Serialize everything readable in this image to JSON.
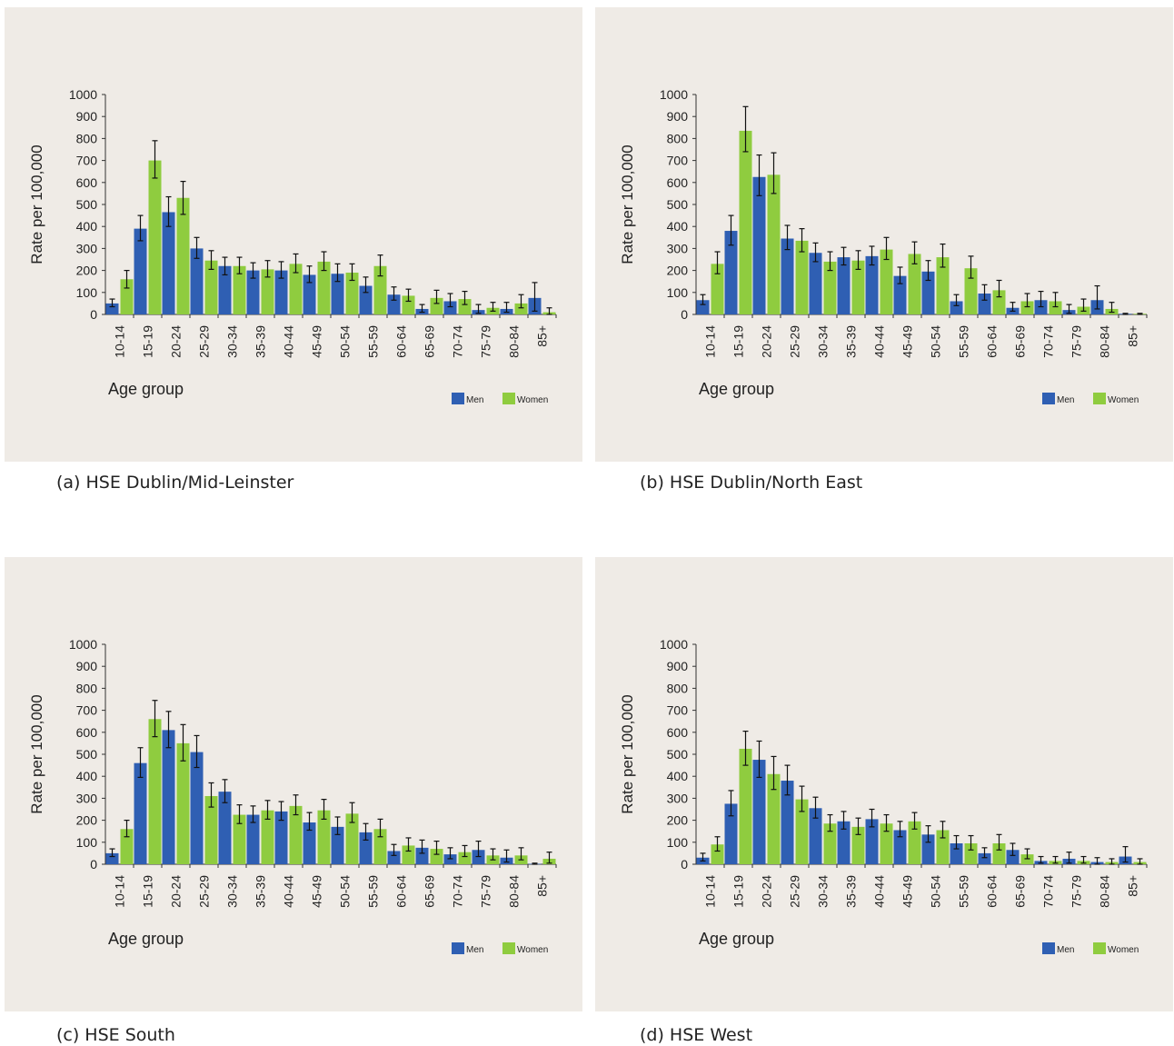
{
  "colors": {
    "men": "#2f5fb3",
    "women": "#8fcc3f",
    "panel_bg": "#efebe6",
    "axis": "#333333"
  },
  "chart_data": [
    {
      "type": "bar",
      "caption": "(a) HSE Dublin/Mid-Leinster",
      "ylabel": "Rate per 100,000",
      "xlabel": "Age group",
      "ylim": [
        0,
        1000
      ],
      "yticks": [
        "0",
        "100",
        "200",
        "300",
        "400",
        "500",
        "600",
        "700",
        "800",
        "900",
        "1000"
      ],
      "categories": [
        "10-14",
        "15-19",
        "20-24",
        "25-29",
        "30-34",
        "35-39",
        "40-44",
        "45-49",
        "50-54",
        "55-59",
        "60-64",
        "65-69",
        "70-74",
        "75-79",
        "80-84",
        "85+"
      ],
      "legend": {
        "placement": "bottom-right"
      },
      "series": [
        {
          "name": "Men",
          "values": [
            50,
            390,
            465,
            300,
            220,
            200,
            200,
            180,
            185,
            130,
            90,
            25,
            60,
            20,
            25,
            75
          ],
          "lower": [
            35,
            335,
            400,
            255,
            180,
            165,
            165,
            145,
            150,
            100,
            65,
            10,
            35,
            5,
            10,
            15
          ],
          "upper": [
            70,
            450,
            535,
            350,
            260,
            235,
            240,
            220,
            230,
            170,
            125,
            45,
            95,
            45,
            55,
            145
          ]
        },
        {
          "name": "Women",
          "values": [
            160,
            700,
            530,
            245,
            220,
            205,
            230,
            240,
            190,
            220,
            85,
            75,
            70,
            30,
            50,
            10
          ],
          "lower": [
            120,
            620,
            455,
            205,
            185,
            170,
            190,
            200,
            155,
            175,
            60,
            50,
            45,
            15,
            30,
            0
          ],
          "upper": [
            200,
            790,
            605,
            290,
            260,
            245,
            275,
            285,
            230,
            270,
            115,
            110,
            105,
            55,
            90,
            30
          ]
        }
      ]
    },
    {
      "type": "bar",
      "caption": "(b) HSE Dublin/North East",
      "ylabel": "Rate per 100,000",
      "xlabel": "Age group",
      "ylim": [
        0,
        1000
      ],
      "yticks": [
        "0",
        "100",
        "200",
        "300",
        "400",
        "500",
        "600",
        "700",
        "800",
        "900",
        "1000"
      ],
      "categories": [
        "10-14",
        "15-19",
        "20-24",
        "25-29",
        "30-34",
        "35-39",
        "40-44",
        "45-49",
        "50-54",
        "55-59",
        "60-64",
        "65-69",
        "70-74",
        "75-79",
        "80-84",
        "85+"
      ],
      "legend": {
        "placement": "bottom-right"
      },
      "series": [
        {
          "name": "Men",
          "values": [
            65,
            380,
            625,
            345,
            280,
            260,
            265,
            175,
            195,
            60,
            95,
            30,
            65,
            20,
            65,
            3
          ],
          "lower": [
            45,
            315,
            540,
            295,
            240,
            225,
            225,
            140,
            155,
            40,
            65,
            15,
            35,
            5,
            25,
            0
          ],
          "upper": [
            90,
            450,
            725,
            405,
            325,
            305,
            310,
            215,
            245,
            90,
            135,
            55,
            105,
            45,
            130,
            5
          ]
        },
        {
          "name": "Women",
          "values": [
            230,
            835,
            635,
            335,
            240,
            245,
            295,
            275,
            260,
            210,
            110,
            60,
            60,
            35,
            25,
            3
          ],
          "lower": [
            185,
            740,
            550,
            285,
            200,
            205,
            250,
            230,
            215,
            165,
            80,
            35,
            35,
            15,
            10,
            0
          ],
          "upper": [
            285,
            945,
            735,
            390,
            285,
            290,
            350,
            330,
            320,
            265,
            155,
            95,
            100,
            70,
            55,
            5
          ]
        }
      ]
    },
    {
      "type": "bar",
      "caption": "(c) HSE South",
      "ylabel": "Rate per 100,000",
      "xlabel": "Age group",
      "ylim": [
        0,
        1000
      ],
      "yticks": [
        "0",
        "100",
        "200",
        "300",
        "400",
        "500",
        "600",
        "700",
        "800",
        "900",
        "1000"
      ],
      "categories": [
        "10-14",
        "15-19",
        "20-24",
        "25-29",
        "30-34",
        "35-39",
        "40-44",
        "45-49",
        "50-54",
        "55-59",
        "60-64",
        "65-69",
        "70-74",
        "75-79",
        "80-84",
        "85+"
      ],
      "legend": {
        "placement": "bottom-right"
      },
      "series": [
        {
          "name": "Men",
          "values": [
            50,
            460,
            610,
            510,
            330,
            225,
            240,
            190,
            170,
            145,
            60,
            75,
            45,
            65,
            30,
            2
          ],
          "lower": [
            35,
            395,
            530,
            440,
            280,
            190,
            200,
            155,
            135,
            110,
            40,
            50,
            25,
            35,
            10,
            0
          ],
          "upper": [
            70,
            530,
            695,
            585,
            385,
            265,
            285,
            235,
            215,
            185,
            90,
            110,
            75,
            105,
            65,
            5
          ]
        },
        {
          "name": "Women",
          "values": [
            160,
            660,
            550,
            310,
            225,
            245,
            265,
            245,
            230,
            160,
            85,
            70,
            55,
            40,
            40,
            25
          ],
          "lower": [
            125,
            580,
            470,
            260,
            185,
            205,
            225,
            205,
            190,
            125,
            60,
            45,
            35,
            20,
            20,
            5
          ],
          "upper": [
            200,
            745,
            635,
            370,
            270,
            290,
            315,
            295,
            280,
            205,
            120,
            105,
            85,
            70,
            75,
            55
          ]
        }
      ]
    },
    {
      "type": "bar",
      "caption": "(d) HSE West",
      "ylabel": "Rate per 100,000",
      "xlabel": "Age group",
      "ylim": [
        0,
        1000
      ],
      "yticks": [
        "0",
        "100",
        "200",
        "300",
        "400",
        "500",
        "600",
        "700",
        "800",
        "900",
        "1000"
      ],
      "categories": [
        "10-14",
        "15-19",
        "20-24",
        "25-29",
        "30-34",
        "35-39",
        "40-44",
        "45-49",
        "50-54",
        "55-59",
        "60-64",
        "65-69",
        "70-74",
        "75-79",
        "80-84",
        "85+"
      ],
      "legend": {
        "placement": "bottom-right"
      },
      "series": [
        {
          "name": "Men",
          "values": [
            30,
            275,
            475,
            380,
            255,
            195,
            205,
            155,
            135,
            95,
            50,
            65,
            15,
            25,
            10,
            35
          ],
          "lower": [
            15,
            220,
            395,
            315,
            210,
            160,
            170,
            125,
            100,
            70,
            30,
            40,
            5,
            5,
            0,
            10
          ],
          "upper": [
            50,
            335,
            560,
            450,
            305,
            240,
            250,
            195,
            175,
            130,
            75,
            95,
            35,
            55,
            30,
            80
          ]
        },
        {
          "name": "Women",
          "values": [
            90,
            525,
            410,
            295,
            185,
            170,
            185,
            195,
            155,
            95,
            95,
            45,
            15,
            15,
            10,
            10
          ],
          "lower": [
            60,
            450,
            340,
            240,
            150,
            135,
            150,
            160,
            120,
            65,
            65,
            25,
            5,
            5,
            0,
            0
          ],
          "upper": [
            125,
            605,
            490,
            355,
            225,
            210,
            225,
            235,
            195,
            130,
            135,
            70,
            35,
            35,
            25,
            25
          ]
        }
      ]
    }
  ]
}
